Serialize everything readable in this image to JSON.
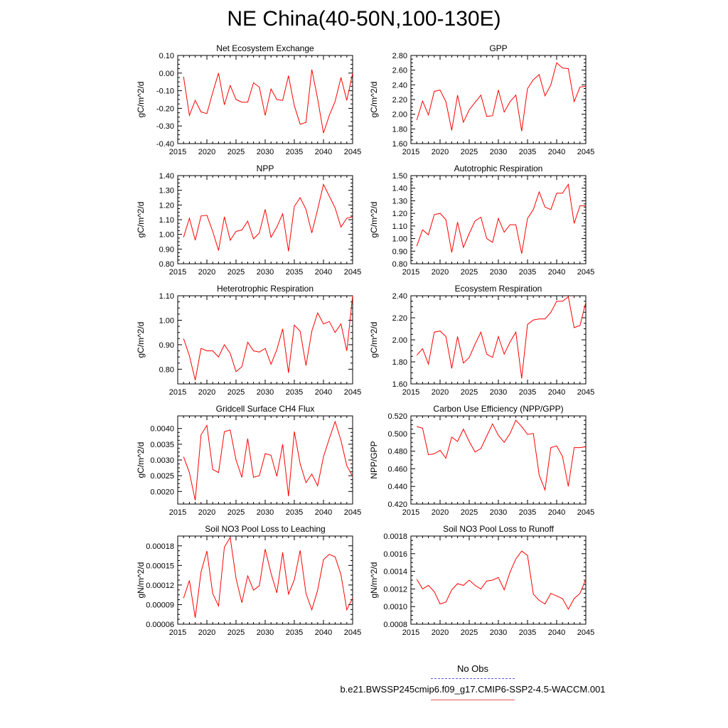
{
  "title": "NE China(40-50N,100-130E)",
  "legend": {
    "obs_label": "No Obs",
    "obs_color": "#5a5ad8",
    "case_label": "b.e21.BWSSP245cmip6.f09_g17.CMIP6-SSP2-4.5-WACCM.001",
    "case_color": "#e05a5a"
  },
  "chart_data": [
    {
      "type": "line",
      "title": "Net Ecosystem Exchange",
      "ylabel": "gC/m^2/d",
      "x": [
        2016,
        2017,
        2018,
        2019,
        2020,
        2021,
        2022,
        2023,
        2024,
        2025,
        2026,
        2027,
        2028,
        2029,
        2030,
        2031,
        2032,
        2033,
        2034,
        2035,
        2036,
        2037,
        2038,
        2039,
        2040,
        2041,
        2042,
        2043,
        2044,
        2045
      ],
      "values": [
        -0.02,
        -0.24,
        -0.155,
        -0.22,
        -0.23,
        -0.11,
        0.0,
        -0.18,
        -0.07,
        -0.15,
        -0.165,
        -0.165,
        -0.055,
        -0.08,
        -0.24,
        -0.09,
        -0.15,
        -0.155,
        -0.015,
        -0.185,
        -0.29,
        -0.28,
        0.02,
        -0.145,
        -0.34,
        -0.24,
        -0.16,
        -0.025,
        -0.155,
        0.0
      ],
      "xlim": [
        2015,
        2045
      ],
      "ylim": [
        -0.4,
        0.1
      ],
      "xticks": [
        "2015",
        "2020",
        "2025",
        "2030",
        "2035",
        "2040",
        "2045"
      ],
      "yticks": [
        "-0.40",
        "-0.30",
        "-0.20",
        "-0.10",
        "0.00",
        "0.10"
      ],
      "line_color": "#ff0000"
    },
    {
      "type": "line",
      "title": "GPP",
      "ylabel": "gC/m^2/d",
      "x": [
        2016,
        2017,
        2018,
        2019,
        2020,
        2021,
        2022,
        2023,
        2024,
        2025,
        2026,
        2027,
        2028,
        2029,
        2030,
        2031,
        2032,
        2033,
        2034,
        2035,
        2036,
        2037,
        2038,
        2039,
        2040,
        2041,
        2042,
        2043,
        2044,
        2045
      ],
      "values": [
        1.92,
        2.18,
        1.99,
        2.31,
        2.33,
        2.17,
        1.78,
        2.26,
        1.89,
        2.06,
        2.16,
        2.26,
        1.97,
        1.98,
        2.33,
        2.03,
        2.17,
        2.26,
        1.77,
        2.35,
        2.47,
        2.54,
        2.25,
        2.4,
        2.7,
        2.63,
        2.62,
        2.17,
        2.37,
        2.38
      ],
      "xlim": [
        2015,
        2045
      ],
      "ylim": [
        1.6,
        2.8
      ],
      "xticks": [
        "2015",
        "2020",
        "2025",
        "2030",
        "2035",
        "2040",
        "2045"
      ],
      "yticks": [
        "1.60",
        "1.80",
        "2.00",
        "2.20",
        "2.40",
        "2.60",
        "2.80"
      ],
      "line_color": "#ff0000"
    },
    {
      "type": "line",
      "title": "NPP",
      "ylabel": "gC/m^2/d",
      "x": [
        2016,
        2017,
        2018,
        2019,
        2020,
        2021,
        2022,
        2023,
        2024,
        2025,
        2026,
        2027,
        2028,
        2029,
        2030,
        2031,
        2032,
        2033,
        2034,
        2035,
        2036,
        2037,
        2038,
        2039,
        2040,
        2041,
        2042,
        2043,
        2044,
        2045
      ],
      "values": [
        0.98,
        1.11,
        0.96,
        1.125,
        1.13,
        1.02,
        0.89,
        1.12,
        0.96,
        1.02,
        1.03,
        1.09,
        0.97,
        1.01,
        1.17,
        0.98,
        1.05,
        1.14,
        0.885,
        1.19,
        1.25,
        1.17,
        1.01,
        1.17,
        1.34,
        1.26,
        1.18,
        1.05,
        1.11,
        1.12
      ],
      "xlim": [
        2015,
        2045
      ],
      "ylim": [
        0.8,
        1.4
      ],
      "xticks": [
        "2015",
        "2020",
        "2025",
        "2030",
        "2035",
        "2040",
        "2045"
      ],
      "yticks": [
        "0.80",
        "0.90",
        "1.00",
        "1.10",
        "1.20",
        "1.30",
        "1.40"
      ],
      "line_color": "#ff0000"
    },
    {
      "type": "line",
      "title": "Autotrophic Respiration",
      "ylabel": "gC/m^2/d",
      "x": [
        2016,
        2017,
        2018,
        2019,
        2020,
        2021,
        2022,
        2023,
        2024,
        2025,
        2026,
        2027,
        2028,
        2029,
        2030,
        2031,
        2032,
        2033,
        2034,
        2035,
        2036,
        2037,
        2038,
        2039,
        2040,
        2041,
        2042,
        2043,
        2044,
        2045
      ],
      "values": [
        0.94,
        1.07,
        1.03,
        1.19,
        1.2,
        1.15,
        0.89,
        1.13,
        0.93,
        1.04,
        1.14,
        1.17,
        1.0,
        0.97,
        1.16,
        1.05,
        1.11,
        1.11,
        0.88,
        1.16,
        1.23,
        1.37,
        1.25,
        1.23,
        1.36,
        1.36,
        1.43,
        1.12,
        1.26,
        1.26
      ],
      "xlim": [
        2015,
        2045
      ],
      "ylim": [
        0.8,
        1.5
      ],
      "xticks": [
        "2015",
        "2020",
        "2025",
        "2030",
        "2035",
        "2040",
        "2045"
      ],
      "yticks": [
        "0.80",
        "0.90",
        "1.00",
        "1.10",
        "1.20",
        "1.30",
        "1.40",
        "1.50"
      ],
      "line_color": "#ff0000"
    },
    {
      "type": "line",
      "title": "Heterotrophic Respiration",
      "ylabel": "gC/m^2/d",
      "x": [
        2016,
        2017,
        2018,
        2019,
        2020,
        2021,
        2022,
        2023,
        2024,
        2025,
        2026,
        2027,
        2028,
        2029,
        2030,
        2031,
        2032,
        2033,
        2034,
        2035,
        2036,
        2037,
        2038,
        2039,
        2040,
        2041,
        2042,
        2043,
        2044,
        2045
      ],
      "values": [
        0.925,
        0.855,
        0.755,
        0.885,
        0.875,
        0.875,
        0.85,
        0.9,
        0.865,
        0.79,
        0.81,
        0.91,
        0.875,
        0.87,
        0.885,
        0.82,
        0.88,
        0.965,
        0.785,
        0.98,
        0.955,
        0.815,
        0.955,
        1.03,
        0.985,
        0.995,
        0.95,
        0.985,
        0.875,
        1.1
      ],
      "xlim": [
        2015,
        2045
      ],
      "ylim": [
        0.74,
        1.1
      ],
      "xticks": [
        "2015",
        "2020",
        "2025",
        "2030",
        "2035",
        "2040",
        "2045"
      ],
      "yticks": [
        "0.80",
        "0.90",
        "1.00",
        "1.10"
      ],
      "ytick_values": [
        0.8,
        0.9,
        1.0,
        1.1
      ],
      "line_color": "#ff0000"
    },
    {
      "type": "line",
      "title": "Ecosystem Respiration",
      "ylabel": "gC/m^2/d",
      "x": [
        2016,
        2017,
        2018,
        2019,
        2020,
        2021,
        2022,
        2023,
        2024,
        2025,
        2026,
        2027,
        2028,
        2029,
        2030,
        2031,
        2032,
        2033,
        2034,
        2035,
        2036,
        2037,
        2038,
        2039,
        2040,
        2041,
        2042,
        2043,
        2044,
        2045
      ],
      "values": [
        1.86,
        1.92,
        1.78,
        2.07,
        2.08,
        2.03,
        1.74,
        2.03,
        1.79,
        1.84,
        1.96,
        2.07,
        1.87,
        1.84,
        2.03,
        1.87,
        1.98,
        2.07,
        1.65,
        2.14,
        2.18,
        2.19,
        2.19,
        2.25,
        2.35,
        2.35,
        2.39,
        2.11,
        2.13,
        2.34
      ],
      "xlim": [
        2015,
        2045
      ],
      "ylim": [
        1.6,
        2.4
      ],
      "xticks": [
        "2015",
        "2020",
        "2025",
        "2030",
        "2035",
        "2040",
        "2045"
      ],
      "yticks": [
        "1.60",
        "1.80",
        "2.00",
        "2.20",
        "2.40"
      ],
      "line_color": "#ff0000"
    },
    {
      "type": "line",
      "title": "Gridcell Surface CH4 Flux",
      "ylabel": "gC/m^2/d",
      "x": [
        2016,
        2017,
        2018,
        2019,
        2020,
        2021,
        2022,
        2023,
        2024,
        2025,
        2026,
        2027,
        2028,
        2029,
        2030,
        2031,
        2032,
        2033,
        2034,
        2035,
        2036,
        2037,
        2038,
        2039,
        2040,
        2041,
        2042,
        2043,
        2044,
        2045
      ],
      "values": [
        0.0031,
        0.0026,
        0.00172,
        0.0038,
        0.0041,
        0.0027,
        0.0026,
        0.0039,
        0.00395,
        0.003,
        0.00245,
        0.00368,
        0.00245,
        0.0025,
        0.0032,
        0.00315,
        0.00248,
        0.0035,
        0.00185,
        0.0039,
        0.00288,
        0.00228,
        0.00255,
        0.00218,
        0.0031,
        0.00368,
        0.00422,
        0.00362,
        0.00282,
        0.00248
      ],
      "xlim": [
        2015,
        2045
      ],
      "ylim": [
        0.0016,
        0.0044
      ],
      "xticks": [
        "2015",
        "2020",
        "2025",
        "2030",
        "2035",
        "2040",
        "2045"
      ],
      "yticks": [
        "0.0020",
        "0.0025",
        "0.0030",
        "0.0035",
        "0.0040"
      ],
      "ytick_values": [
        0.002,
        0.0025,
        0.003,
        0.0035,
        0.004
      ],
      "line_color": "#ff0000"
    },
    {
      "type": "line",
      "title": "Carbon Use Efficiency (NPP/GPP)",
      "ylabel": "NPP/GPP",
      "x": [
        2016,
        2017,
        2018,
        2019,
        2020,
        2021,
        2022,
        2023,
        2024,
        2025,
        2026,
        2027,
        2028,
        2029,
        2030,
        2031,
        2032,
        2033,
        2034,
        2035,
        2036,
        2037,
        2038,
        2039,
        2040,
        2041,
        2042,
        2043,
        2044,
        2045
      ],
      "values": [
        0.508,
        0.506,
        0.476,
        0.477,
        0.481,
        0.472,
        0.496,
        0.491,
        0.505,
        0.491,
        0.479,
        0.483,
        0.497,
        0.511,
        0.498,
        0.49,
        0.5,
        0.515,
        0.508,
        0.499,
        0.5,
        0.453,
        0.436,
        0.484,
        0.486,
        0.474,
        0.44,
        0.484,
        0.484,
        0.485
      ],
      "xlim": [
        2015,
        2045
      ],
      "ylim": [
        0.42,
        0.52
      ],
      "xticks": [
        "2015",
        "2020",
        "2025",
        "2030",
        "2035",
        "2040",
        "2045"
      ],
      "yticks": [
        "0.420",
        "0.440",
        "0.460",
        "0.480",
        "0.500",
        "0.520"
      ],
      "line_color": "#ff0000"
    },
    {
      "type": "line",
      "title": "Soil NO3 Pool Loss to Leaching",
      "ylabel": "gN/m^2/d",
      "x": [
        2016,
        2017,
        2018,
        2019,
        2020,
        2021,
        2022,
        2023,
        2024,
        2025,
        2026,
        2027,
        2028,
        2029,
        2030,
        2031,
        2032,
        2033,
        2034,
        2035,
        2036,
        2037,
        2038,
        2039,
        2040,
        2041,
        2042,
        2043,
        2044,
        2045
      ],
      "values": [
        0.0001,
        0.000127,
        7e-05,
        0.00014,
        0.000172,
        0.000107,
        8.8e-05,
        0.000178,
        0.000193,
        0.00013,
        9.3e-05,
        0.000134,
        0.000112,
        0.000119,
        0.000175,
        0.000138,
        0.000108,
        0.00017,
        0.000106,
        0.000128,
        0.000173,
        0.000107,
        8.2e-05,
        0.000112,
        0.000159,
        0.000167,
        0.000163,
        0.000136,
        8.2e-05,
        0.0001
      ],
      "xlim": [
        2015,
        2045
      ],
      "ylim": [
        6e-05,
        0.000195
      ],
      "xticks": [
        "2015",
        "2020",
        "2025",
        "2030",
        "2035",
        "2040",
        "2045"
      ],
      "yticks": [
        "0.00006",
        "0.00009",
        "0.00012",
        "0.00015",
        "0.00018"
      ],
      "ytick_values": [
        6e-05,
        9e-05,
        0.00012,
        0.00015,
        0.00018
      ],
      "line_color": "#ff0000"
    },
    {
      "type": "line",
      "title": "Soil NO3 Pool Loss to Runoff",
      "ylabel": "gN/m^2/d",
      "x": [
        2016,
        2017,
        2018,
        2019,
        2020,
        2021,
        2022,
        2023,
        2024,
        2025,
        2026,
        2027,
        2028,
        2029,
        2030,
        2031,
        2032,
        2033,
        2034,
        2035,
        2036,
        2037,
        2038,
        2039,
        2040,
        2041,
        2042,
        2043,
        2044,
        2045
      ],
      "values": [
        0.00131,
        0.0012,
        0.00124,
        0.00117,
        0.00103,
        0.00105,
        0.00119,
        0.00126,
        0.00124,
        0.0013,
        0.00124,
        0.0012,
        0.00129,
        0.0013,
        0.00133,
        0.00119,
        0.00139,
        0.00154,
        0.00163,
        0.00158,
        0.00114,
        0.00107,
        0.00103,
        0.00115,
        0.00112,
        0.00109,
        0.00097,
        0.00109,
        0.00115,
        0.00131
      ],
      "xlim": [
        2015,
        2045
      ],
      "ylim": [
        0.0008,
        0.0018
      ],
      "xticks": [
        "2015",
        "2020",
        "2025",
        "2030",
        "2035",
        "2040",
        "2045"
      ],
      "yticks": [
        "0.0008",
        "0.0010",
        "0.0012",
        "0.0014",
        "0.0016",
        "0.0018"
      ],
      "line_color": "#ff0000"
    }
  ]
}
